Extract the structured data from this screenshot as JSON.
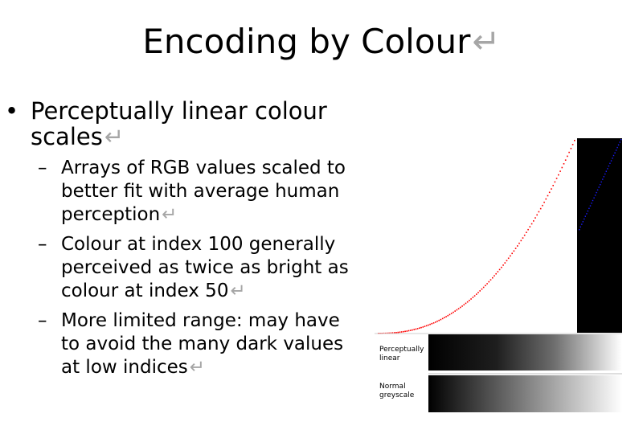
{
  "slide": {
    "title": "Encoding by Colour",
    "return_glyph": "↵"
  },
  "bullets": [
    {
      "text": "Perceptually linear colour scales",
      "sub": [
        {
          "text": "Arrays of RGB values scaled to better fit with average human perception"
        },
        {
          "text": "Colour at index 100 generally perceived as twice as bright as colour at index 50"
        },
        {
          "text": "More limited range: may have to avoid the many dark values at low indices"
        }
      ]
    }
  ],
  "figure": {
    "labels": {
      "perceptual_line1": "Perceptually",
      "perceptual_line2": "linear",
      "normal_line1": "Normal",
      "normal_line2": "greyscale"
    },
    "colors": {
      "curve_red": "#ff0000",
      "curve_blue": "#1a1aff",
      "block": "#000000"
    }
  }
}
